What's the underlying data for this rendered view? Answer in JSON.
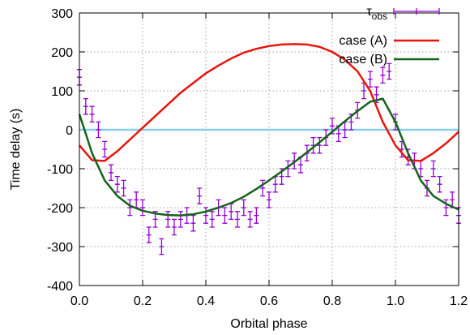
{
  "chart_data": {
    "type": "line",
    "xlabel": "Orbital phase",
    "ylabel": "Time delay (s)",
    "xlim": [
      0,
      1.2
    ],
    "ylim": [
      -400,
      300
    ],
    "xticks": [
      {
        "value": 0,
        "label": "0.0"
      },
      0.2,
      0.4,
      0.6,
      0.8,
      {
        "value": 1,
        "label": "1.0"
      },
      1.2
    ],
    "yticks": [
      -400,
      -300,
      -200,
      -100,
      0,
      100,
      200,
      300
    ],
    "grid": true,
    "legend": "upper right",
    "hline": {
      "y": 0,
      "color": "#87ceeb"
    },
    "series": [
      {
        "name": "τ",
        "name_subscript": "obs",
        "style": "errorbar",
        "color": "#9400d3",
        "x": [
          0,
          0.02,
          0.04,
          0.06,
          0.08,
          0.1,
          0.12,
          0.14,
          0.16,
          0.18,
          0.2,
          0.22,
          0.24,
          0.26,
          0.28,
          0.3,
          0.32,
          0.34,
          0.36,
          0.38,
          0.4,
          0.42,
          0.44,
          0.46,
          0.48,
          0.5,
          0.52,
          0.54,
          0.56,
          0.58,
          0.6,
          0.62,
          0.64,
          0.66,
          0.68,
          0.7,
          0.72,
          0.74,
          0.76,
          0.78,
          0.8,
          0.82,
          0.84,
          0.86,
          0.88,
          0.9,
          0.92,
          0.94,
          0.96,
          0.98,
          1,
          1.02,
          1.04,
          1.06,
          1.08,
          1.1,
          1.12,
          1.14,
          1.16,
          1.18,
          1.2
        ],
        "values": [
          135,
          60,
          40,
          0,
          -50,
          -110,
          -140,
          -150,
          -200,
          -180,
          -200,
          -270,
          -230,
          -300,
          -230,
          -250,
          -230,
          -220,
          -240,
          -170,
          -220,
          -230,
          -200,
          -220,
          -210,
          -230,
          -200,
          -230,
          -220,
          -150,
          -180,
          -140,
          -120,
          -100,
          -80,
          -90,
          -60,
          -40,
          -40,
          -20,
          10,
          -10,
          0,
          20,
          50,
          100,
          130,
          90,
          140,
          150,
          20,
          -50,
          -70,
          -80,
          -100,
          -150,
          -100,
          -140,
          -200,
          -180,
          -220
        ],
        "errors": [
          20,
          20,
          20,
          20,
          20,
          20,
          20,
          20,
          20,
          20,
          20,
          20,
          20,
          20,
          20,
          20,
          20,
          20,
          20,
          20,
          20,
          20,
          20,
          20,
          20,
          20,
          20,
          20,
          20,
          20,
          20,
          20,
          20,
          20,
          20,
          20,
          20,
          20,
          20,
          20,
          20,
          20,
          20,
          20,
          20,
          20,
          20,
          20,
          20,
          20,
          20,
          20,
          20,
          20,
          20,
          20,
          20,
          20,
          20,
          20,
          20
        ]
      },
      {
        "name": "case (A)",
        "style": "line",
        "color": "#e8160c",
        "x": [
          0,
          0.04,
          0.08,
          0.12,
          0.16,
          0.2,
          0.24,
          0.28,
          0.32,
          0.36,
          0.4,
          0.44,
          0.48,
          0.52,
          0.56,
          0.6,
          0.64,
          0.68,
          0.72,
          0.76,
          0.8,
          0.84,
          0.88,
          0.92,
          0.96,
          1,
          1.04,
          1.08,
          1.12,
          1.16,
          1.2
        ],
        "values": [
          -40,
          -78,
          -80,
          -55,
          -25,
          5,
          35,
          65,
          95,
          120,
          145,
          165,
          183,
          198,
          208,
          215,
          219,
          220,
          219,
          213,
          200,
          180,
          150,
          100,
          20,
          -40,
          -78,
          -80,
          -60,
          -35,
          -5
        ]
      },
      {
        "name": "case (B)",
        "style": "line",
        "color": "#13641a",
        "x": [
          0,
          0.04,
          0.08,
          0.12,
          0.16,
          0.2,
          0.24,
          0.28,
          0.32,
          0.36,
          0.4,
          0.44,
          0.48,
          0.52,
          0.56,
          0.6,
          0.64,
          0.68,
          0.72,
          0.76,
          0.8,
          0.84,
          0.88,
          0.92,
          0.96,
          1,
          1.04,
          1.08,
          1.12,
          1.16,
          1.2
        ],
        "values": [
          40,
          -60,
          -130,
          -170,
          -195,
          -208,
          -215,
          -219,
          -220,
          -217,
          -210,
          -200,
          -188,
          -172,
          -152,
          -130,
          -107,
          -83,
          -58,
          -32,
          -5,
          22,
          48,
          72,
          80,
          20,
          -60,
          -130,
          -170,
          -190,
          -205
        ]
      }
    ]
  }
}
